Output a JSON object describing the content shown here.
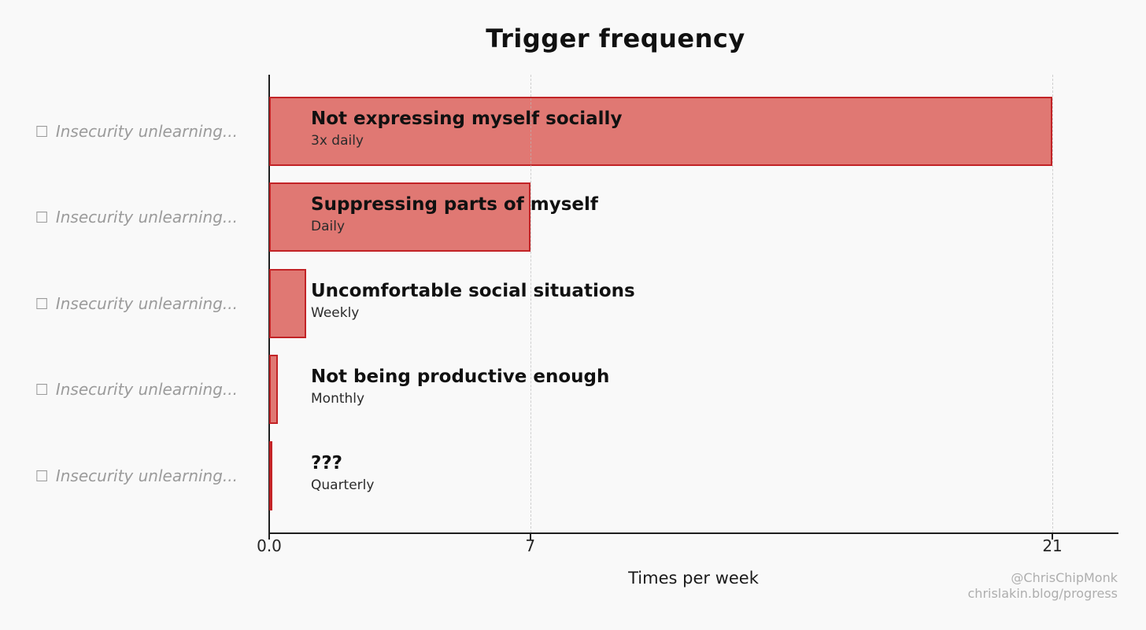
{
  "chart_data": {
    "type": "bar",
    "orientation": "horizontal",
    "title": "Trigger frequency",
    "xlabel": "Times per week",
    "xlim": [
      0,
      22.75
    ],
    "grid": {
      "axis": "x",
      "style": "dashed",
      "values": [
        7,
        21
      ]
    },
    "ytick": {
      "icon": "☐",
      "text": "Insecurity unlearning..."
    },
    "bars": [
      {
        "label": "Not expressing myself socially",
        "sublabel": "3x daily",
        "value": 21
      },
      {
        "label": "Suppressing parts of myself",
        "sublabel": "Daily",
        "value": 7
      },
      {
        "label": "Uncomfortable social situations",
        "sublabel": "Weekly",
        "value": 1
      },
      {
        "label": "Not being productive enough",
        "sublabel": "Monthly",
        "value": 0.23
      },
      {
        "label": "???",
        "sublabel": "Quarterly",
        "value": 0.077
      }
    ],
    "xticks": [
      {
        "value": 0,
        "label": "0.0"
      },
      {
        "value": 7,
        "label": "7"
      },
      {
        "value": 21,
        "label": "21"
      }
    ],
    "colors": {
      "background": "#f9f9f9",
      "bar_fill": "#e07873",
      "bar_edge": "#c22326",
      "grid": "#bdbdbd",
      "ylabel_gray": "#9b9b9b",
      "credit_gray": "#aeaeae"
    }
  },
  "footer": {
    "credit_line1": "@ChrisChipMonk",
    "credit_line2": "chrislakin.blog/progress"
  }
}
